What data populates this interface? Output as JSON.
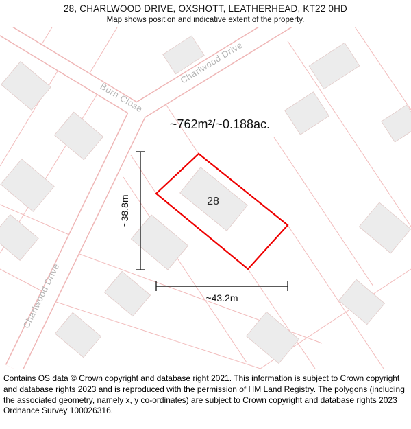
{
  "header": {
    "title": "28, CHARLWOOD DRIVE, OXSHOTT, LEATHERHEAD, KT22 0HD",
    "subtitle": "Map shows position and indicative extent of the property."
  },
  "map": {
    "area_label": "~762m²/~0.188ac.",
    "plot_number": "28",
    "width_label": "~43.2m",
    "height_label": "~38.8m",
    "road_labels": {
      "burn_close": "Burn Close",
      "charlwood_drive": "Charlwood Drive"
    },
    "colors": {
      "plot_outline": "#ee0000",
      "parcel_line": "#f2bcbc",
      "building_fill": "#ececec",
      "road_label": "#b4b4b4"
    }
  },
  "footer": {
    "text": "Contains OS data © Crown copyright and database right 2021. This information is subject to Crown copyright and database rights 2023 and is reproduced with the permission of HM Land Registry. The polygons (including the associated geometry, namely x, y co-ordinates) are subject to Crown copyright and database rights 2023 Ordnance Survey 100026316."
  }
}
